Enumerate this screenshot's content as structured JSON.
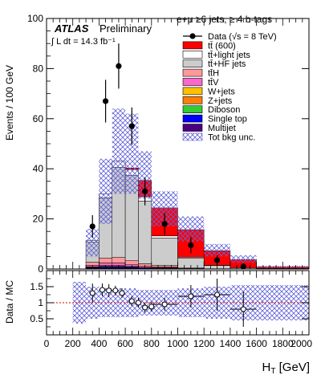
{
  "chart_data": [
    {
      "type": "stacked-histogram",
      "header": {
        "atlas": "ATLAS",
        "preliminary": "Preliminary",
        "lumi": "∫ L dt = 14.3 fb⁻¹",
        "channel": "e+μ  ≥6 jets, ≥ 4 b-tags"
      },
      "ylabel": "Events / 100 GeV",
      "ylim": [
        0,
        100
      ],
      "yticks": [
        "0",
        "20",
        "40",
        "60",
        "80",
        "100"
      ],
      "bins": [
        [
          300,
          400
        ],
        [
          400,
          500
        ],
        [
          500,
          600
        ],
        [
          600,
          700
        ],
        [
          700,
          800
        ],
        [
          800,
          1000
        ],
        [
          1000,
          1200
        ],
        [
          1200,
          1400
        ],
        [
          1400,
          1600
        ],
        [
          1600,
          2000
        ]
      ],
      "series": [
        {
          "name": "Multijet",
          "color": "#4b0082",
          "values": [
            0.2,
            0.3,
            0.3,
            0.2,
            0.1,
            0.1,
            0.0,
            0.0,
            0.0,
            0.0
          ]
        },
        {
          "name": "Single top",
          "color": "#0000ff",
          "values": [
            0.3,
            0.5,
            0.5,
            0.4,
            0.3,
            0.2,
            0.1,
            0.0,
            0.0,
            0.0
          ]
        },
        {
          "name": "Diboson",
          "color": "#33cc33",
          "values": [
            0.1,
            0.1,
            0.1,
            0.1,
            0.0,
            0.0,
            0.0,
            0.0,
            0.0,
            0.0
          ]
        },
        {
          "name": "Z+jets",
          "color": "#ff8000",
          "values": [
            0.1,
            0.2,
            0.2,
            0.1,
            0.1,
            0.1,
            0.0,
            0.0,
            0.0,
            0.0
          ]
        },
        {
          "name": "W+jets",
          "color": "#ffc000",
          "values": [
            0.2,
            0.3,
            0.3,
            0.2,
            0.1,
            0.1,
            0.0,
            0.0,
            0.0,
            0.0
          ]
        },
        {
          "name": "tt̄V",
          "color": "#ff66cc",
          "values": [
            0.6,
            1.0,
            1.0,
            0.7,
            0.5,
            0.3,
            0.1,
            0.0,
            0.0,
            0.0
          ]
        },
        {
          "name": "tt̄H",
          "color": "#ff9999",
          "values": [
            1.2,
            2.0,
            2.2,
            1.6,
            1.0,
            0.6,
            0.2,
            0.1,
            0.0,
            0.0
          ]
        },
        {
          "name": "tt̄+HF jets",
          "color": "#cccccc",
          "values": [
            8.0,
            24.0,
            36.0,
            34.0,
            25.0,
            11.0,
            4.0,
            1.3,
            0.5,
            0.2
          ]
        },
        {
          "name": "tt̄+light jets",
          "color": "#ffffff",
          "values": [
            0.6,
            1.6,
            2.4,
            2.4,
            1.7,
            0.8,
            0.3,
            0.1,
            0.0,
            0.0
          ]
        },
        {
          "name": "tt̄ (600)",
          "color": "#ff0000",
          "values": [
            0.0,
            0.0,
            0.0,
            0.6,
            6.5,
            11.2,
            11.0,
            5.8,
            3.2,
            0.6
          ]
        }
      ],
      "unc_low": [
        5,
        18,
        30,
        30,
        28,
        17,
        11,
        5,
        2.5,
        0.5
      ],
      "unc_high": [
        16,
        44,
        64,
        62,
        47,
        31,
        21,
        10,
        5.5,
        1.3
      ],
      "data_label": "Data (√s = 8 TeV)",
      "unc_label": "Tot bkg unc.",
      "data": {
        "x": [
          350,
          450,
          550,
          650,
          750,
          900,
          1100,
          1300,
          1500
        ],
        "y": [
          17,
          67,
          81,
          57,
          31,
          18,
          9.5,
          3.5,
          1
        ],
        "err": [
          4.5,
          8.5,
          9,
          7.5,
          5.6,
          4.3,
          3.2,
          2,
          1.2
        ]
      }
    },
    {
      "type": "ratio",
      "ylabel": "Data / MC",
      "xlabel": "H_T [GeV]",
      "ylim": [
        0,
        2
      ],
      "yticks": [
        "0.5",
        "1",
        "1.5"
      ],
      "xlim": [
        0,
        2000
      ],
      "xticks": [
        "0",
        "200",
        "400",
        "600",
        "800",
        "1000",
        "1200",
        "1400",
        "1600",
        "1800",
        "2000"
      ],
      "unc_low": [
        0.35,
        0.5,
        0.55,
        0.55,
        0.55,
        0.6,
        0.6,
        0.55,
        0.5,
        0.45,
        0.45,
        0.45,
        0.45,
        0.45,
        0.45,
        0.45
      ],
      "unc_high": [
        1.65,
        1.5,
        1.45,
        1.45,
        1.45,
        1.4,
        1.4,
        1.45,
        1.5,
        1.55,
        1.55,
        1.55,
        1.55,
        1.55,
        1.55,
        1.55
      ],
      "unc_bins": [
        200,
        300,
        400,
        500,
        600,
        700,
        800,
        1000,
        1200,
        1400,
        1600,
        1700,
        1800,
        1900,
        2000,
        2000
      ],
      "points": {
        "x": [
          350,
          425,
          475,
          525,
          575,
          650,
          700,
          750,
          800,
          900,
          1100,
          1300,
          1500
        ],
        "xerr": [
          25,
          25,
          25,
          25,
          25,
          25,
          25,
          25,
          25,
          100,
          100,
          100,
          100
        ],
        "y": [
          1.3,
          1.4,
          1.38,
          1.38,
          1.3,
          1.05,
          1.0,
          0.85,
          0.88,
          0.95,
          1.2,
          1.25,
          0.8
        ],
        "yerr": [
          0.3,
          0.2,
          0.2,
          0.15,
          0.15,
          0.15,
          0.15,
          0.15,
          0.15,
          0.2,
          0.35,
          0.5,
          0.55
        ]
      }
    }
  ]
}
